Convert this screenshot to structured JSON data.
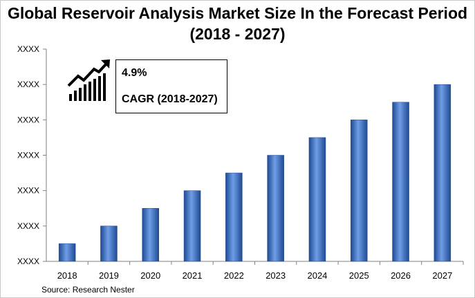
{
  "title_line1": "Global Reservoir Analysis Market Size In the Forecast Period",
  "title_line2": "(2018 - 2027)",
  "cagr": {
    "value": "4.9%",
    "label": "CAGR (2018-2027)"
  },
  "source": "Source: Research Nester",
  "colors": {
    "bar": "#3a6fc4",
    "bar_dark": "#1f4a94",
    "bar_light": "#6f9de6"
  },
  "chart_data": {
    "type": "bar",
    "categories": [
      "2018",
      "2019",
      "2020",
      "2021",
      "2022",
      "2023",
      "2024",
      "2025",
      "2026",
      "2027"
    ],
    "values": [
      1,
      2,
      3,
      4,
      5,
      6,
      7,
      8,
      9,
      10
    ],
    "yticks": [
      "XXXX",
      "XXXX",
      "XXXX",
      "XXXX",
      "XXXX",
      "XXXX",
      "XXXX"
    ],
    "ylim": [
      0,
      12
    ],
    "grid": false,
    "xlabel": "",
    "ylabel": ""
  }
}
